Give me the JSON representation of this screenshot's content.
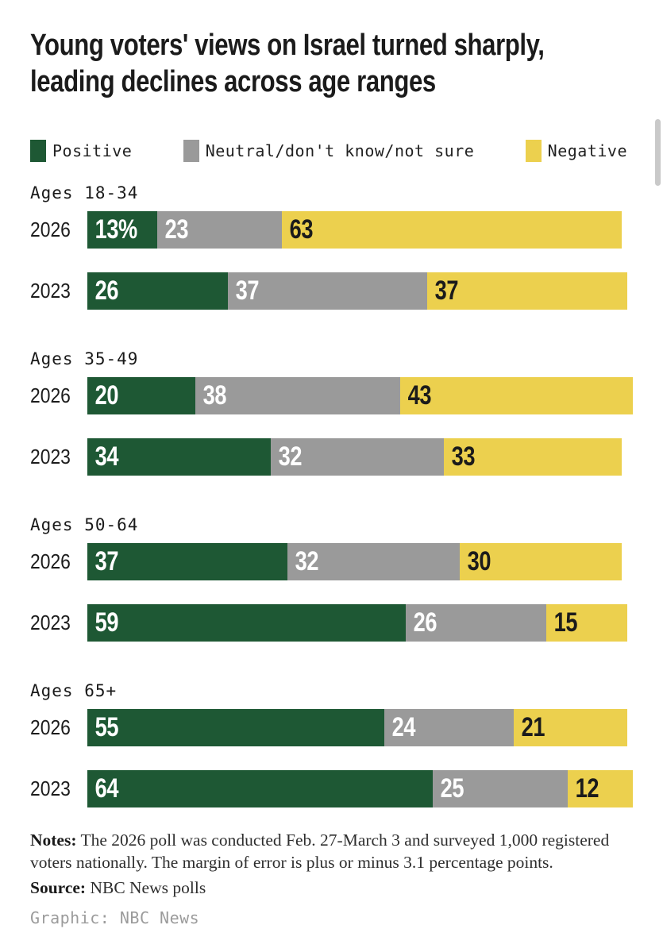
{
  "title": "Young voters' views on Israel turned sharply,\nleading declines across age ranges",
  "colors": {
    "positive": "#1E5834",
    "neutral": "#9A9A9A",
    "negative": "#ECD04E",
    "value_label_on_dark": "#ffffff",
    "value_label_on_yellow": "#1b1b1b",
    "scrollbar": "#c9c9c9"
  },
  "legend": [
    {
      "label": "Positive",
      "color": "#1E5834",
      "value_label_color": "#ffffff"
    },
    {
      "label": "Neutral/don't know/not sure",
      "color": "#9A9A9A",
      "value_label_color": "#ffffff"
    },
    {
      "label": "Negative",
      "color": "#ECD04E",
      "value_label_color": "#1b1b1b"
    }
  ],
  "chart_data": {
    "type": "bar",
    "orientation": "horizontal_stacked",
    "unit": "percent",
    "xlim": [
      0,
      100
    ],
    "grid": false,
    "legend_position": "top",
    "series_names": [
      "Positive",
      "Neutral/don't know/not sure",
      "Negative"
    ],
    "groups": [
      {
        "label": "Ages 18-34",
        "rows": [
          {
            "year": "2026",
            "values": [
              13,
              23,
              63
            ],
            "labels": [
              "13%",
              "23",
              "63"
            ]
          },
          {
            "year": "2023",
            "values": [
              26,
              37,
              37
            ],
            "labels": [
              "26",
              "37",
              "37"
            ]
          }
        ]
      },
      {
        "label": "Ages 35-49",
        "rows": [
          {
            "year": "2026",
            "values": [
              20,
              38,
              43
            ],
            "labels": [
              "20",
              "38",
              "43"
            ]
          },
          {
            "year": "2023",
            "values": [
              34,
              32,
              33
            ],
            "labels": [
              "34",
              "32",
              "33"
            ]
          }
        ]
      },
      {
        "label": "Ages 50-64",
        "rows": [
          {
            "year": "2026",
            "values": [
              37,
              32,
              30
            ],
            "labels": [
              "37",
              "32",
              "30"
            ]
          },
          {
            "year": "2023",
            "values": [
              59,
              26,
              15
            ],
            "labels": [
              "59",
              "26",
              "15"
            ]
          }
        ]
      },
      {
        "label": "Ages 65+",
        "rows": [
          {
            "year": "2026",
            "values": [
              55,
              24,
              21
            ],
            "labels": [
              "55",
              "24",
              "21"
            ]
          },
          {
            "year": "2023",
            "values": [
              64,
              25,
              12
            ],
            "labels": [
              "64",
              "25",
              "12"
            ]
          }
        ]
      }
    ]
  },
  "footer": {
    "notes_label": "Notes:",
    "notes_text": " The 2026 poll was conducted Feb. 27-March 3 and surveyed 1,000 registered voters nationally. The margin of error is plus or minus 3.1 percentage points.",
    "source_label": "Source:",
    "source_text": " NBC News polls",
    "credit": "Graphic: NBC News"
  }
}
